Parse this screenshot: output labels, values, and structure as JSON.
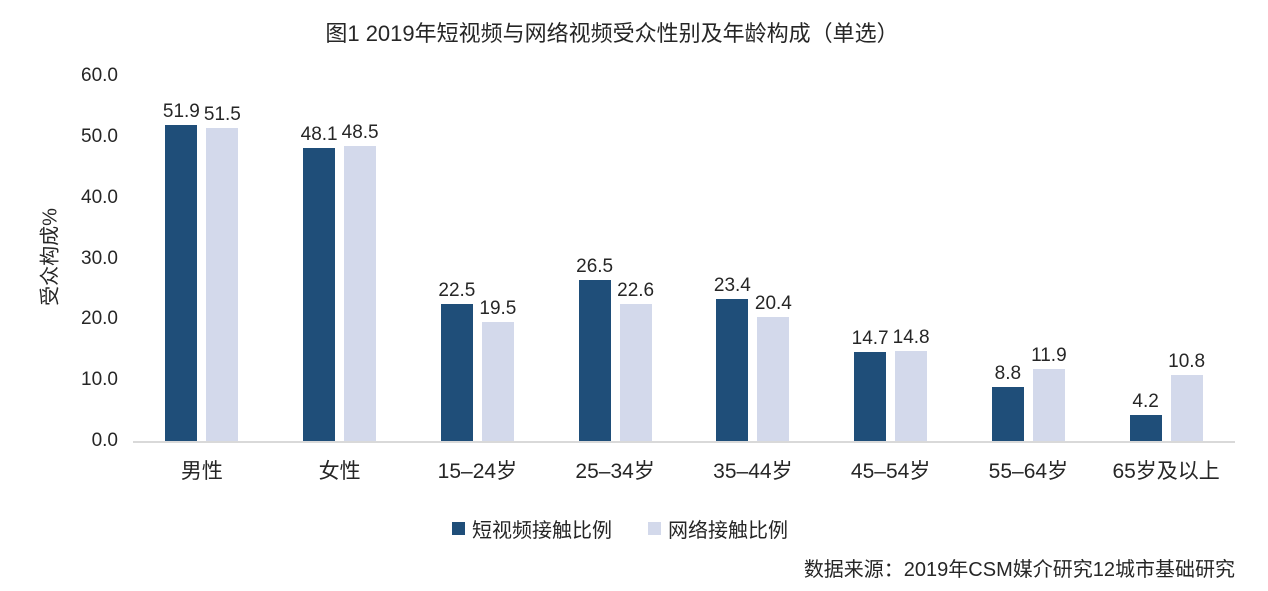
{
  "chart_data": {
    "type": "bar",
    "title": "图1 2019年短视频与网络视频受众性别及年龄构成（单选）",
    "ylabel": "受众构成%",
    "xlabel": "",
    "ylim": [
      0,
      60
    ],
    "yticks": [
      "60.0",
      "50.0",
      "40.0",
      "30.0",
      "20.0",
      "10.0",
      "0.0"
    ],
    "grid": false,
    "legend_position": "bottom",
    "categories": [
      "男性",
      "女性",
      "15–24岁",
      "25–34岁",
      "35–44岁",
      "45–54岁",
      "55–64岁",
      "65岁及以上"
    ],
    "series": [
      {
        "name": "短视频接触比例",
        "color": "#1F4E79",
        "values": [
          51.9,
          48.1,
          22.5,
          26.5,
          23.4,
          14.7,
          8.8,
          4.2
        ]
      },
      {
        "name": "网络接触比例",
        "color": "#D3D9EB",
        "values": [
          51.5,
          48.5,
          19.5,
          22.6,
          20.4,
          14.8,
          11.9,
          10.8
        ]
      }
    ]
  },
  "source": "数据来源：2019年CSM媒介研究12城市基础研究",
  "colors": {
    "axis_line": "#d9d9d9",
    "text": "#262626"
  }
}
